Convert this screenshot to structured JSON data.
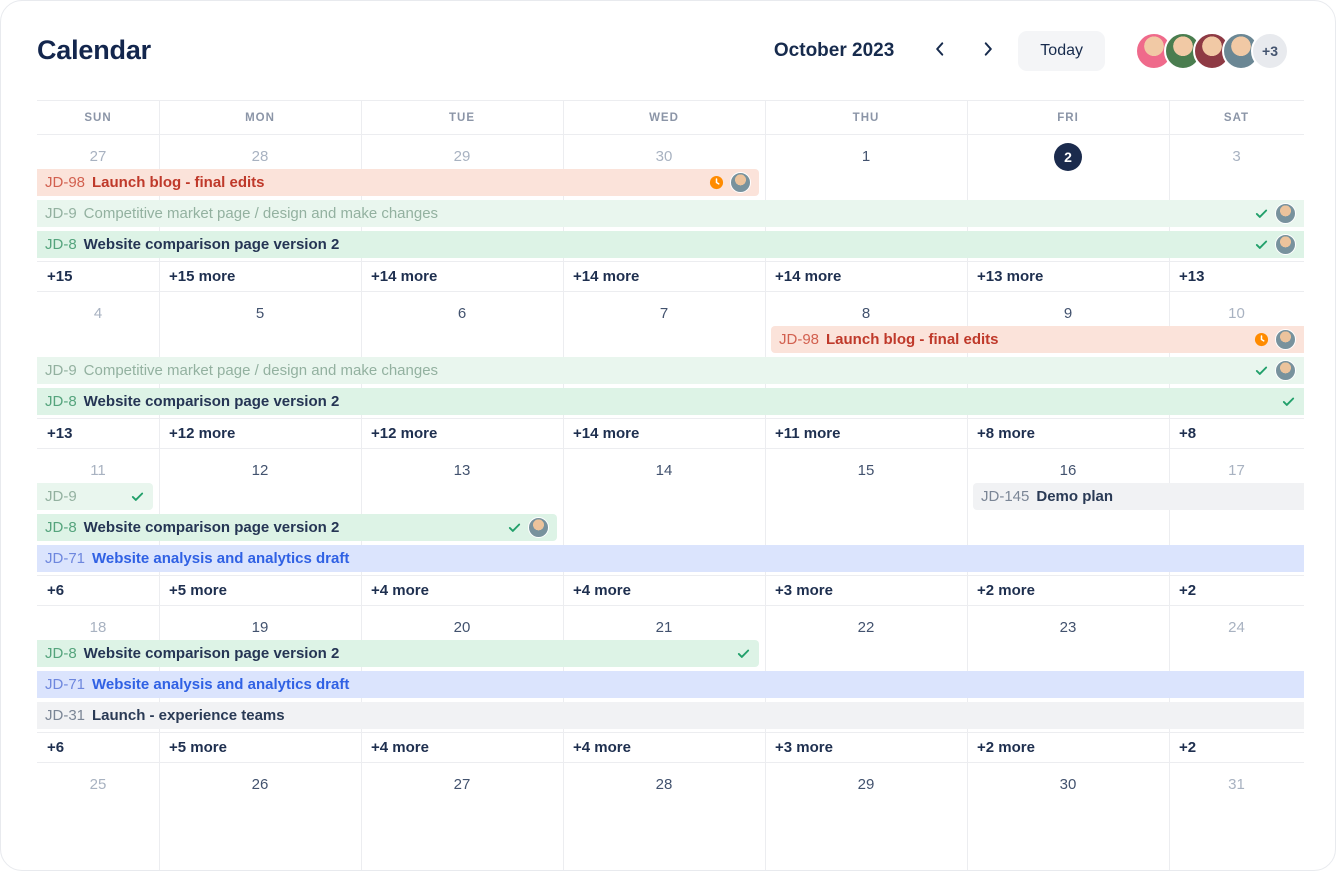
{
  "header": {
    "title": "Calendar",
    "month_label": "October 2023",
    "today_label": "Today",
    "overflow_avatars": "+3",
    "avatars": [
      {
        "name": "member-1",
        "color": "#ef6a8b"
      },
      {
        "name": "member-2",
        "color": "#4a7d4f"
      },
      {
        "name": "member-3",
        "color": "#8e3a44"
      },
      {
        "name": "member-4",
        "color": "#6b8794"
      }
    ]
  },
  "colors": {
    "today_badge": "#1b2b4d",
    "event_red_bg": "#fbe3da",
    "event_red_text": "#bf392a",
    "event_done_bg": "#e9f6ee",
    "event_done_text": "#93b1a0",
    "event_green_bg": "#ddf3e6",
    "event_green_key": "#55a47d",
    "event_blue_bg": "#dbe4fd",
    "event_blue_text": "#3061e4",
    "event_gray_bg": "#f1f2f4",
    "check_icon": "#22a06b",
    "clock_icon": "#ff8b00",
    "grid_line": "#ecedf0"
  },
  "day_headers": [
    "SUN",
    "MON",
    "TUE",
    "WED",
    "THU",
    "FRI",
    "SAT"
  ],
  "weeks": [
    {
      "dates": [
        {
          "label": "27",
          "style": "outside"
        },
        {
          "label": "28",
          "style": "outside"
        },
        {
          "label": "29",
          "style": "outside"
        },
        {
          "label": "30",
          "style": "outside"
        },
        {
          "label": "1",
          "style": "weekday"
        },
        {
          "label": "2",
          "style": "today"
        },
        {
          "label": "3",
          "style": "weekend"
        }
      ],
      "events": [
        {
          "key": "JD-98",
          "title": "Launch blog - final edits",
          "type": "red",
          "start": 0,
          "span": 4,
          "line": 0,
          "icons": [
            "clock-icon",
            "avatar"
          ]
        },
        {
          "key": "JD-9",
          "title": "Competitive market page / design and make changes",
          "type": "done",
          "start": 0,
          "span": 7,
          "line": 1,
          "icons": [
            "check-icon",
            "avatar"
          ]
        },
        {
          "key": "JD-8",
          "title": "Website comparison page version 2",
          "type": "green",
          "start": 0,
          "span": 7,
          "line": 2,
          "icons": [
            "check-icon",
            "avatar"
          ]
        }
      ],
      "more": [
        "+15",
        "+15 more",
        "+14 more",
        "+14 more",
        "+14 more",
        "+13 more",
        "+13"
      ]
    },
    {
      "dates": [
        {
          "label": "4",
          "style": "weekend"
        },
        {
          "label": "5",
          "style": "weekday"
        },
        {
          "label": "6",
          "style": "weekday"
        },
        {
          "label": "7",
          "style": "weekday"
        },
        {
          "label": "8",
          "style": "weekday"
        },
        {
          "label": "9",
          "style": "weekday"
        },
        {
          "label": "10",
          "style": "weekend"
        }
      ],
      "events": [
        {
          "key": "JD-98",
          "title": "Launch blog - final edits",
          "type": "red",
          "start": 4,
          "span": 3,
          "line": 0,
          "icons": [
            "clock-icon",
            "avatar"
          ]
        },
        {
          "key": "JD-9",
          "title": "Competitive market page / design and make changes",
          "type": "done",
          "start": 0,
          "span": 7,
          "line": 1,
          "icons": [
            "check-icon",
            "avatar"
          ]
        },
        {
          "key": "JD-8",
          "title": "Website comparison page version 2",
          "type": "green",
          "start": 0,
          "span": 7,
          "line": 2,
          "icons": [
            "check-icon"
          ]
        }
      ],
      "more": [
        "+13",
        "+12 more",
        "+12 more",
        "+14 more",
        "+11 more",
        "+8 more",
        "+8"
      ]
    },
    {
      "dates": [
        {
          "label": "11",
          "style": "weekend"
        },
        {
          "label": "12",
          "style": "weekday"
        },
        {
          "label": "13",
          "style": "weekday"
        },
        {
          "label": "14",
          "style": "weekday"
        },
        {
          "label": "15",
          "style": "weekday"
        },
        {
          "label": "16",
          "style": "weekday"
        },
        {
          "label": "17",
          "style": "weekend"
        }
      ],
      "events": [
        {
          "key": "JD-9",
          "title": "",
          "type": "done",
          "start": 0,
          "span": 1,
          "line": 0,
          "icons": [
            "check-icon"
          ]
        },
        {
          "key": "JD-145",
          "title": "Demo plan",
          "type": "gray",
          "start": 5,
          "span": 2,
          "line": 0,
          "icons": []
        },
        {
          "key": "JD-8",
          "title": "Website comparison page version 2",
          "type": "green",
          "start": 0,
          "span": 3,
          "line": 1,
          "icons": [
            "check-icon",
            "avatar"
          ]
        },
        {
          "key": "JD-71",
          "title": "Website analysis and analytics draft",
          "type": "blue",
          "start": 0,
          "span": 7,
          "line": 2,
          "icons": []
        }
      ],
      "more": [
        "+6",
        "+5 more",
        "+4 more",
        "+4 more",
        "+3 more",
        "+2 more",
        "+2"
      ]
    },
    {
      "dates": [
        {
          "label": "18",
          "style": "weekend"
        },
        {
          "label": "19",
          "style": "weekday"
        },
        {
          "label": "20",
          "style": "weekday"
        },
        {
          "label": "21",
          "style": "weekday"
        },
        {
          "label": "22",
          "style": "weekday"
        },
        {
          "label": "23",
          "style": "weekday"
        },
        {
          "label": "24",
          "style": "weekend"
        }
      ],
      "events": [
        {
          "key": "JD-8",
          "title": "Website comparison page version 2",
          "type": "green",
          "start": 0,
          "span": 4,
          "line": 0,
          "icons": [
            "check-icon"
          ]
        },
        {
          "key": "JD-71",
          "title": "Website analysis and analytics draft",
          "type": "blue",
          "start": 0,
          "span": 7,
          "line": 1,
          "icons": []
        },
        {
          "key": "JD-31",
          "title": "Launch - experience teams",
          "type": "gray",
          "start": 0,
          "span": 7,
          "line": 2,
          "icons": []
        }
      ],
      "more": [
        "+6",
        "+5 more",
        "+4 more",
        "+4 more",
        "+3 more",
        "+2 more",
        "+2"
      ]
    },
    {
      "dates": [
        {
          "label": "25",
          "style": "weekend"
        },
        {
          "label": "26",
          "style": "weekday"
        },
        {
          "label": "27",
          "style": "weekday"
        },
        {
          "label": "28",
          "style": "weekday"
        },
        {
          "label": "29",
          "style": "weekday"
        },
        {
          "label": "30",
          "style": "weekday"
        },
        {
          "label": "31",
          "style": "weekend"
        }
      ],
      "events": [],
      "more": null
    }
  ]
}
